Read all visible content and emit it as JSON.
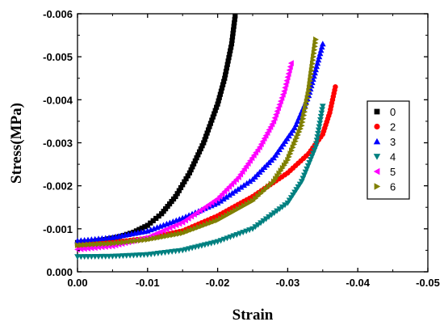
{
  "chart_data": {
    "type": "scatter",
    "xlabel": "Strain",
    "ylabel": "Stress(MPa)",
    "xlim": [
      0.0,
      -0.05
    ],
    "ylim": [
      0.0,
      -0.006
    ],
    "x_ticks": [
      "0.00",
      "-0.01",
      "-0.02",
      "-0.03",
      "-0.04",
      "-0.05"
    ],
    "y_ticks": [
      "0.000",
      "-0.001",
      "-0.002",
      "-0.003",
      "-0.004",
      "-0.005",
      "-0.006"
    ],
    "legend_position": "right",
    "series": [
      {
        "name": "0",
        "marker": "square",
        "color": "#000000",
        "x": [
          0.0,
          -0.002,
          -0.004,
          -0.006,
          -0.008,
          -0.01,
          -0.012,
          -0.014,
          -0.016,
          -0.018,
          -0.02,
          -0.021,
          -0.022,
          -0.0225
        ],
        "y": [
          -0.00068,
          -0.0007,
          -0.00075,
          -0.00082,
          -0.00092,
          -0.00108,
          -0.00135,
          -0.00175,
          -0.0023,
          -0.003,
          -0.0039,
          -0.0045,
          -0.0053,
          -0.00595
        ]
      },
      {
        "name": "2",
        "marker": "circle",
        "color": "#ff0000",
        "x": [
          0.0,
          -0.005,
          -0.01,
          -0.015,
          -0.02,
          -0.025,
          -0.03,
          -0.033,
          -0.035,
          -0.036,
          -0.0368
        ],
        "y": [
          -0.00062,
          -0.00068,
          -0.00078,
          -0.00095,
          -0.0013,
          -0.00175,
          -0.0023,
          -0.00275,
          -0.0032,
          -0.0037,
          -0.0043
        ]
      },
      {
        "name": "3",
        "marker": "triangle-up",
        "color": "#0000ff",
        "x": [
          0.0,
          -0.005,
          -0.01,
          -0.015,
          -0.02,
          -0.025,
          -0.028,
          -0.031,
          -0.033,
          -0.034,
          -0.035
        ],
        "y": [
          -0.00072,
          -0.0008,
          -0.00095,
          -0.00125,
          -0.0016,
          -0.00215,
          -0.00265,
          -0.00335,
          -0.0041,
          -0.0047,
          -0.0053
        ]
      },
      {
        "name": "4",
        "marker": "triangle-down",
        "color": "#008080",
        "x": [
          0.0,
          -0.005,
          -0.01,
          -0.015,
          -0.02,
          -0.025,
          -0.03,
          -0.032,
          -0.034,
          -0.035
        ],
        "y": [
          -0.00035,
          -0.00036,
          -0.0004,
          -0.0005,
          -0.0007,
          -0.001,
          -0.0016,
          -0.0021,
          -0.0029,
          -0.00385
        ]
      },
      {
        "name": "5",
        "marker": "triangle-left",
        "color": "#ff00ff",
        "x": [
          0.0,
          -0.005,
          -0.01,
          -0.015,
          -0.02,
          -0.023,
          -0.026,
          -0.028,
          -0.0295,
          -0.0305
        ],
        "y": [
          -0.00052,
          -0.0006,
          -0.0008,
          -0.00115,
          -0.0017,
          -0.0022,
          -0.0029,
          -0.0035,
          -0.0042,
          -0.00485
        ]
      },
      {
        "name": "6",
        "marker": "triangle-right",
        "color": "#808000",
        "x": [
          0.0,
          -0.005,
          -0.01,
          -0.015,
          -0.02,
          -0.025,
          -0.028,
          -0.03,
          -0.032,
          -0.033,
          -0.034
        ],
        "y": [
          -0.00062,
          -0.00066,
          -0.00075,
          -0.0009,
          -0.0012,
          -0.00165,
          -0.0021,
          -0.0026,
          -0.0034,
          -0.0042,
          -0.0054
        ]
      }
    ]
  }
}
